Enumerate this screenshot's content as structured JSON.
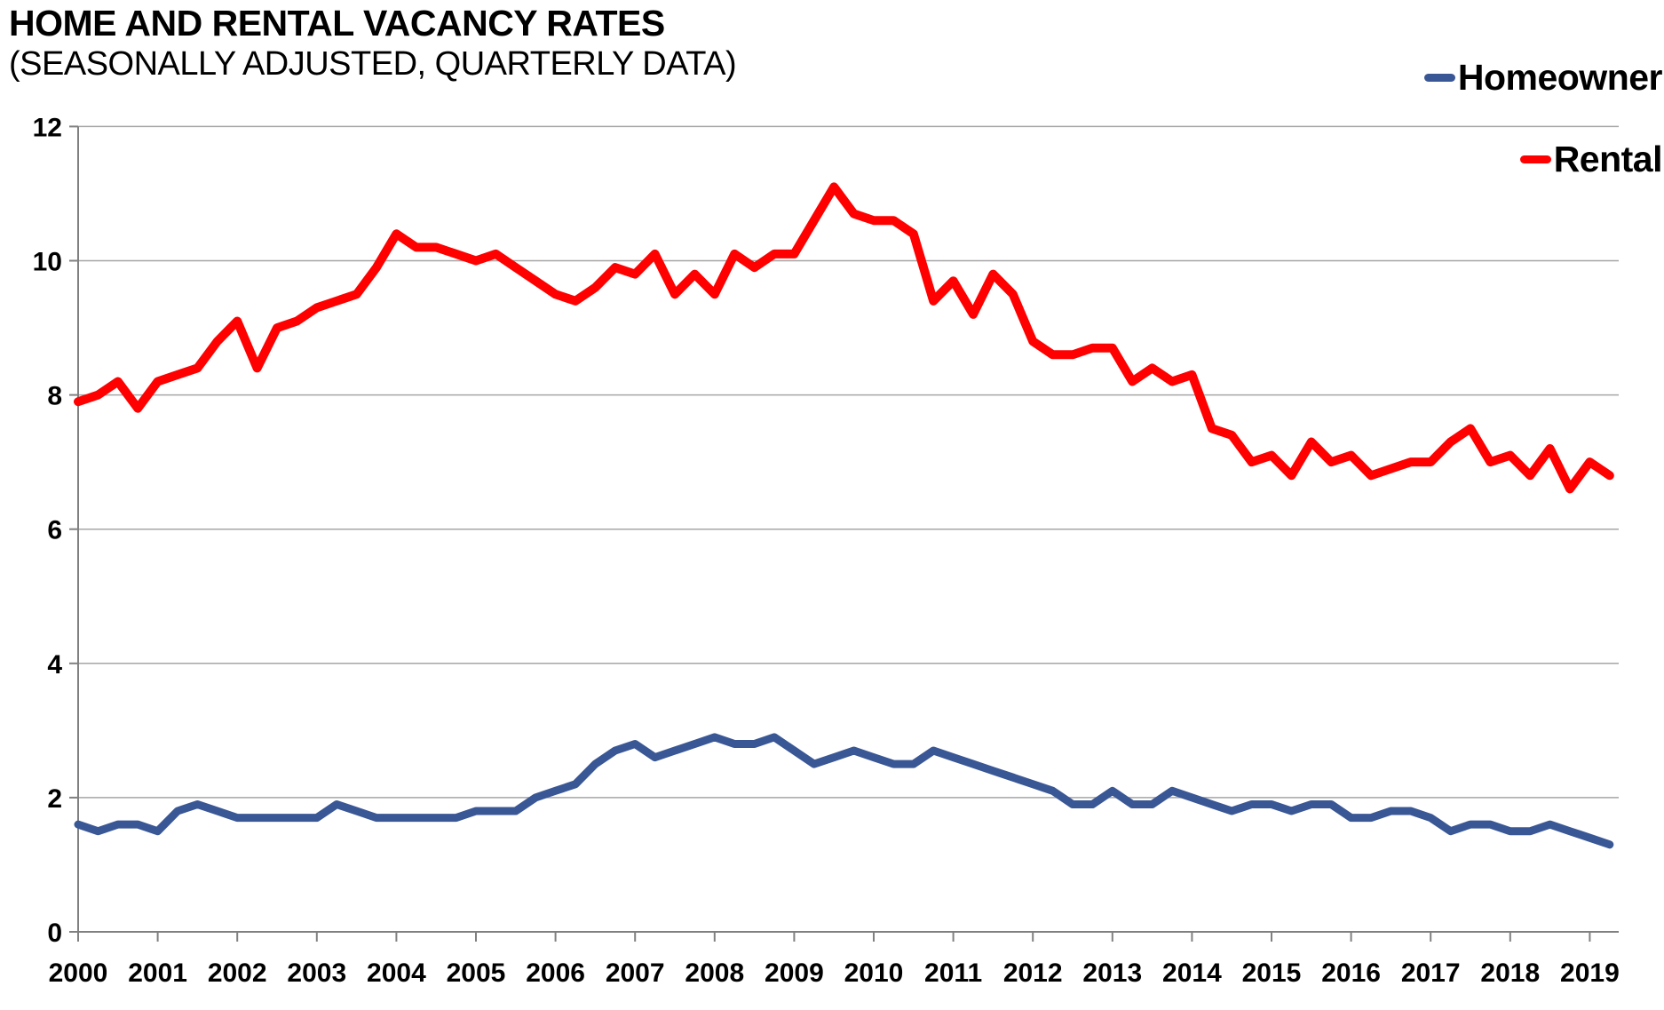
{
  "header": {
    "title": "HOME AND RENTAL VACANCY RATES",
    "subtitle": "(SEASONALLY ADJUSTED, QUARTERLY DATA)"
  },
  "legend": {
    "items": [
      {
        "id": "homeowner",
        "label": "Homeowner",
        "color": "#3A5795"
      },
      {
        "id": "rental",
        "label": "Rental",
        "color": "#FF0000"
      }
    ]
  },
  "colors": {
    "homeowner_line": "#3A5795",
    "rental_line": "#FF0000",
    "gridline": "#A6A6A6",
    "axis": "#808080",
    "text": "#000000",
    "background": "#FFFFFF"
  },
  "chart_data": {
    "type": "line",
    "title": "HOME AND RENTAL VACANCY RATES",
    "subtitle": "(SEASONALLY ADJUSTED, QUARTERLY DATA)",
    "x_unit": "quarter",
    "x_tick_labels": [
      "2000",
      "2001",
      "2002",
      "2003",
      "2004",
      "2005",
      "2006",
      "2007",
      "2008",
      "2009",
      "2010",
      "2011",
      "2012",
      "2013",
      "2014",
      "2015",
      "2016",
      "2017",
      "2018",
      "2019"
    ],
    "quarters_per_year": 4,
    "first_quarter": "2000 Q1",
    "last_quarter": "2019 Q2",
    "ylim": [
      0,
      12
    ],
    "yticks": [
      0,
      2,
      4,
      6,
      8,
      10,
      12
    ],
    "grid": true,
    "legend_position": "top-right",
    "series": [
      {
        "name": "Homeowner",
        "color": "#3A5795",
        "values": [
          1.6,
          1.5,
          1.6,
          1.6,
          1.5,
          1.8,
          1.9,
          1.8,
          1.7,
          1.7,
          1.7,
          1.7,
          1.7,
          1.9,
          1.8,
          1.7,
          1.7,
          1.7,
          1.7,
          1.7,
          1.8,
          1.8,
          1.8,
          2.0,
          2.1,
          2.2,
          2.5,
          2.7,
          2.8,
          2.6,
          2.7,
          2.8,
          2.9,
          2.8,
          2.8,
          2.9,
          2.7,
          2.5,
          2.6,
          2.7,
          2.6,
          2.5,
          2.5,
          2.7,
          2.6,
          2.5,
          2.4,
          2.3,
          2.2,
          2.1,
          1.9,
          1.9,
          2.1,
          1.9,
          1.9,
          2.1,
          2.0,
          1.9,
          1.8,
          1.9,
          1.9,
          1.8,
          1.9,
          1.9,
          1.7,
          1.7,
          1.8,
          1.8,
          1.7,
          1.5,
          1.6,
          1.6,
          1.5,
          1.5,
          1.6,
          1.5,
          1.4,
          1.3
        ]
      },
      {
        "name": "Rental",
        "color": "#FF0000",
        "values": [
          7.9,
          8.0,
          8.2,
          7.8,
          8.2,
          8.3,
          8.4,
          8.8,
          9.1,
          8.4,
          9.0,
          9.1,
          9.3,
          9.4,
          9.5,
          9.9,
          10.4,
          10.2,
          10.2,
          10.1,
          10.0,
          10.1,
          9.9,
          9.7,
          9.5,
          9.4,
          9.6,
          9.9,
          9.8,
          10.1,
          9.5,
          9.8,
          9.5,
          10.1,
          9.9,
          10.1,
          10.1,
          10.6,
          11.1,
          10.7,
          10.6,
          10.6,
          10.4,
          9.4,
          9.7,
          9.2,
          9.8,
          9.5,
          8.8,
          8.6,
          8.6,
          8.7,
          8.7,
          8.2,
          8.4,
          8.2,
          8.3,
          7.5,
          7.4,
          7.0,
          7.1,
          6.8,
          7.3,
          7.0,
          7.1,
          6.8,
          6.9,
          7.0,
          7.0,
          7.3,
          7.5,
          7.0,
          7.1,
          6.8,
          7.2,
          6.6,
          7.0,
          6.8
        ]
      }
    ]
  }
}
